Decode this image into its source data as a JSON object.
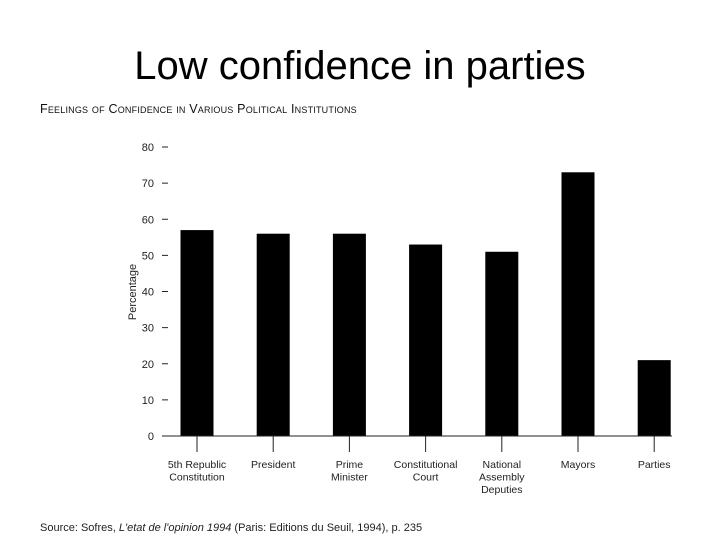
{
  "slide": {
    "title": "Low confidence in parties"
  },
  "source": {
    "prefix": "Source: Sofres, ",
    "italic": "L'etat de l'opinion 1994",
    "suffix": " (Paris: Editions du Seuil, 1994), p. 235"
  },
  "chart_data": {
    "type": "bar",
    "title": "Feelings of Confidence in Various Political Institutions",
    "xlabel": "",
    "ylabel": "Percentage",
    "ylim": [
      0,
      80
    ],
    "yticks": [
      0,
      10,
      20,
      30,
      40,
      50,
      60,
      70,
      80
    ],
    "grid": false,
    "bar_color": "#000000",
    "categories": [
      [
        "5th Republic",
        "Constitution"
      ],
      [
        "President"
      ],
      [
        "Prime",
        "Minister"
      ],
      [
        "Constitutional",
        "Court"
      ],
      [
        "National",
        "Assembly",
        "Deputies"
      ],
      [
        "Mayors"
      ],
      [
        "Parties"
      ]
    ],
    "values": [
      57,
      56,
      56,
      53,
      51,
      73,
      21
    ]
  }
}
